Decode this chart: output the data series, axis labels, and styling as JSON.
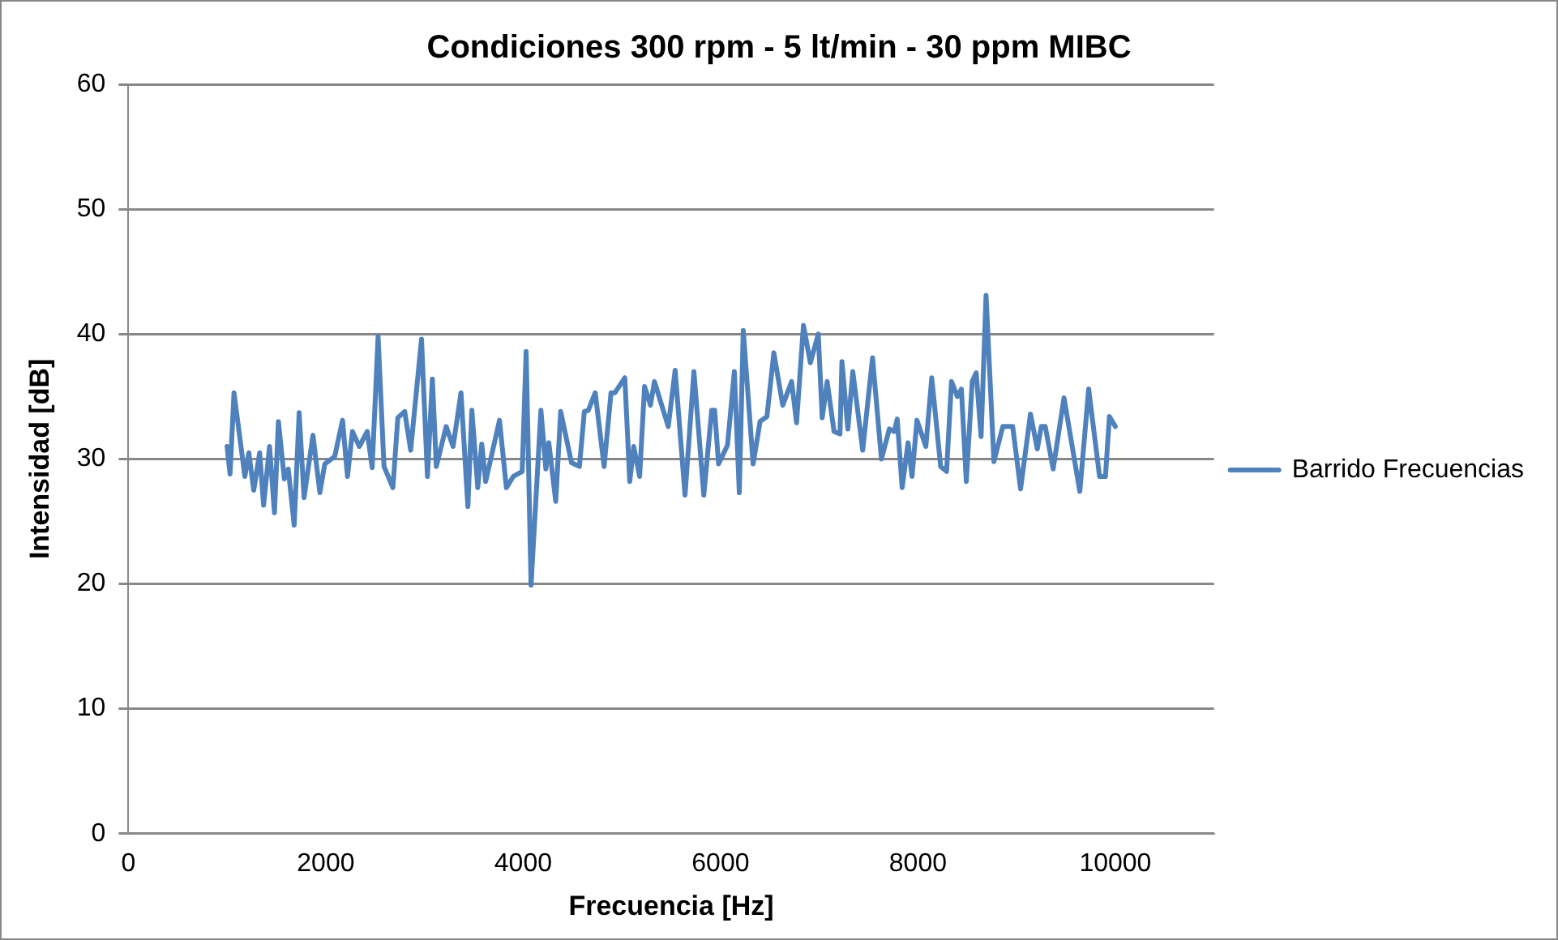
{
  "chart_data": {
    "type": "line",
    "title": "Condiciones 300 rpm - 5 lt/min - 30 ppm MIBC",
    "xlabel": "Frecuencia [Hz]",
    "ylabel": "Intensidad [dB]",
    "xlim": [
      0,
      11000
    ],
    "xticks": [
      0,
      2000,
      4000,
      6000,
      8000,
      10000
    ],
    "ylim": [
      0,
      60
    ],
    "yticks": [
      0,
      10,
      20,
      30,
      40,
      50,
      60
    ],
    "grid": "y",
    "legend": "right",
    "marker": "none",
    "line_style": "solid",
    "series": [
      {
        "name": "Barrido Frecuencias",
        "color": "#4f81bd",
        "x": [
          1000,
          1030,
          1070,
          1180,
          1220,
          1270,
          1330,
          1370,
          1430,
          1480,
          1520,
          1580,
          1620,
          1680,
          1730,
          1780,
          1870,
          1940,
          1990,
          2090,
          2170,
          2220,
          2270,
          2340,
          2420,
          2470,
          2530,
          2590,
          2680,
          2730,
          2800,
          2860,
          2970,
          3030,
          3080,
          3120,
          3220,
          3290,
          3370,
          3440,
          3480,
          3540,
          3580,
          3620,
          3760,
          3830,
          3900,
          3990,
          4030,
          4080,
          4180,
          4230,
          4260,
          4330,
          4380,
          4490,
          4570,
          4620,
          4660,
          4730,
          4820,
          4890,
          4930,
          5030,
          5080,
          5120,
          5180,
          5230,
          5290,
          5330,
          5470,
          5540,
          5640,
          5730,
          5830,
          5910,
          5940,
          5980,
          6070,
          6140,
          6190,
          6230,
          6330,
          6400,
          6470,
          6540,
          6630,
          6720,
          6770,
          6840,
          6910,
          6990,
          7030,
          7080,
          7150,
          7210,
          7230,
          7290,
          7340,
          7440,
          7540,
          7630,
          7710,
          7760,
          7790,
          7840,
          7900,
          7940,
          7990,
          8080,
          8140,
          8230,
          8290,
          8340,
          8400,
          8440,
          8490,
          8550,
          8590,
          8640,
          8690,
          8770,
          8860,
          8960,
          9040,
          9140,
          9210,
          9250,
          9290,
          9370,
          9480,
          9640,
          9730,
          9840,
          9900,
          9940,
          10000
        ],
        "values": [
          31.0,
          28.8,
          35.3,
          28.6,
          30.5,
          27.5,
          30.5,
          26.3,
          31.0,
          25.7,
          33.0,
          28.4,
          29.2,
          24.7,
          33.7,
          26.9,
          31.9,
          27.3,
          29.6,
          30.2,
          33.1,
          28.6,
          32.2,
          31.0,
          32.2,
          29.3,
          39.8,
          29.4,
          27.7,
          33.3,
          33.8,
          30.7,
          39.6,
          28.6,
          36.4,
          29.4,
          32.6,
          31.0,
          35.3,
          26.2,
          33.9,
          27.7,
          31.2,
          28.2,
          33.1,
          27.7,
          28.6,
          29.0,
          38.6,
          19.9,
          33.9,
          29.2,
          31.3,
          26.6,
          33.8,
          29.7,
          29.4,
          33.8,
          33.9,
          35.3,
          29.4,
          35.3,
          35.3,
          36.5,
          28.2,
          31.0,
          28.6,
          35.8,
          34.3,
          36.2,
          32.6,
          37.1,
          27.1,
          37.0,
          27.1,
          33.9,
          33.9,
          29.6,
          31.1,
          37.0,
          27.3,
          40.3,
          29.6,
          33.0,
          33.4,
          38.5,
          34.3,
          36.2,
          32.9,
          40.7,
          37.7,
          40.0,
          33.3,
          36.2,
          32.2,
          32.0,
          37.8,
          32.4,
          37.0,
          30.7,
          38.1,
          30.0,
          32.4,
          32.2,
          33.2,
          27.7,
          31.3,
          28.6,
          33.1,
          31.0,
          36.5,
          29.4,
          29.0,
          36.2,
          35.0,
          35.6,
          28.2,
          36.2,
          36.9,
          31.8,
          43.1,
          29.8,
          32.6,
          32.6,
          27.6,
          33.6,
          30.8,
          32.6,
          32.6,
          29.2,
          34.9,
          27.4,
          35.6,
          28.6,
          28.6,
          33.4,
          32.6
        ]
      }
    ]
  }
}
